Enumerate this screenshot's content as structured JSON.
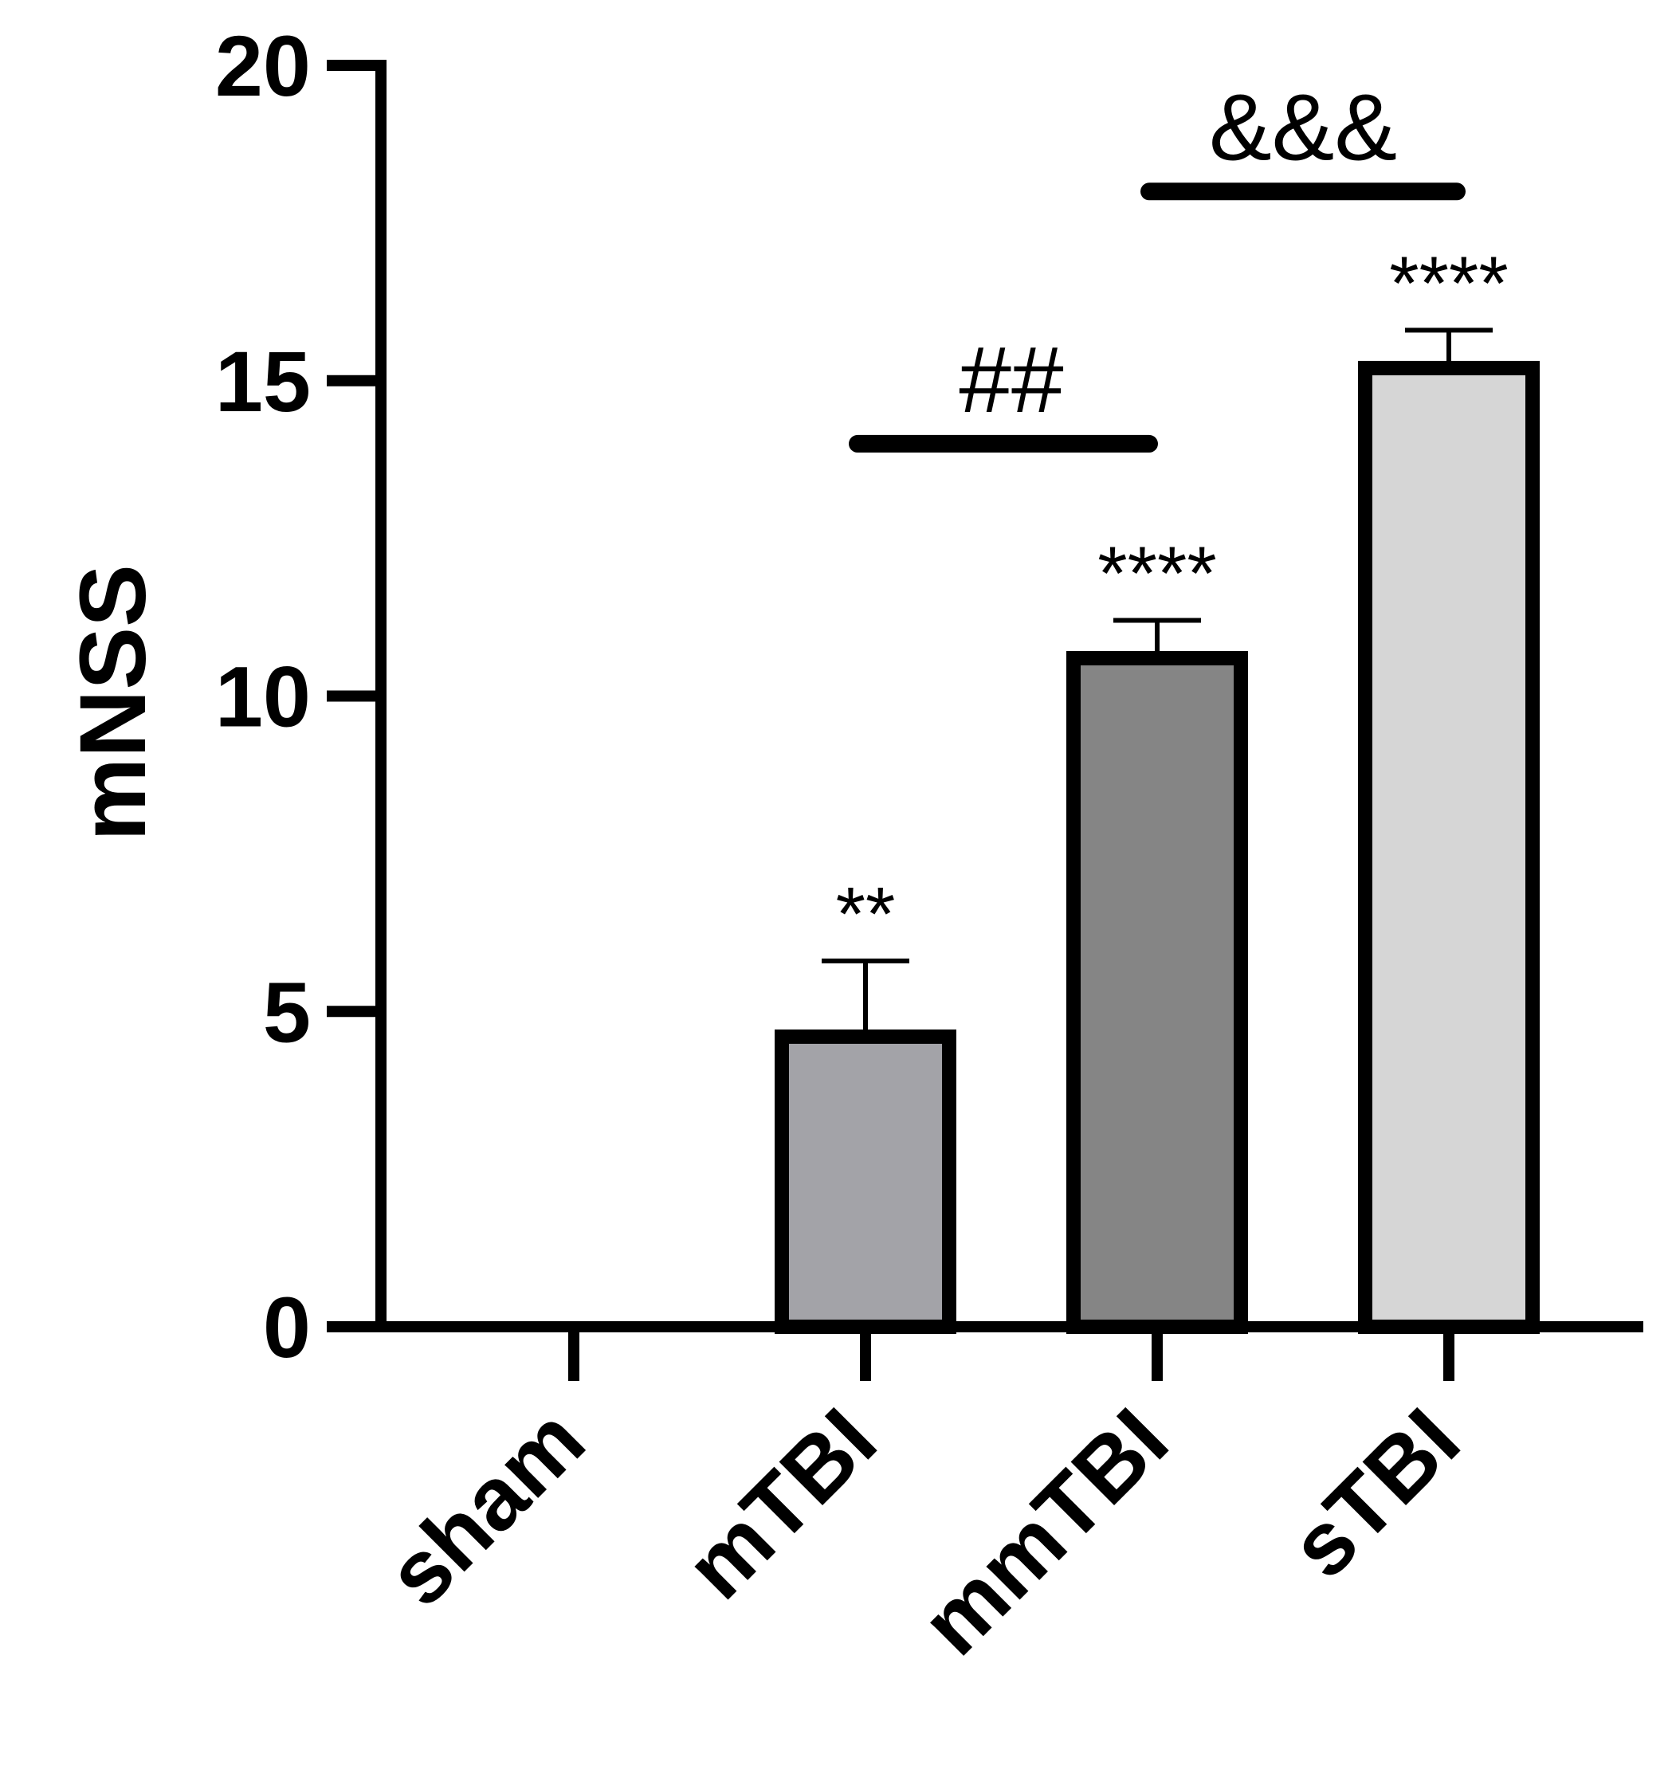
{
  "chart_data": {
    "type": "bar",
    "title": "",
    "xlabel": "",
    "ylabel": "mNSS",
    "ylim": [
      0,
      20
    ],
    "yticks": [
      "0",
      "5",
      "10",
      "15",
      "20"
    ],
    "categories": [
      "sham",
      "mTBI",
      "mmTBI",
      "sTBI"
    ],
    "values": [
      0,
      4.6,
      10.6,
      15.2
    ],
    "error": [
      0,
      1.2,
      0.6,
      0.6
    ],
    "bar_colors": [
      "#ffffff",
      "#a3a3a8",
      "#858585",
      "#d6d6d6"
    ],
    "significance_labels": [
      "",
      "**",
      "****",
      "****"
    ],
    "comparisons": [
      {
        "from": "mTBI",
        "to": "mmTBI",
        "label": "##",
        "y": 14.0
      },
      {
        "from": "mmTBI",
        "to": "sTBI",
        "label": "&&&",
        "y": 18.0
      }
    ],
    "grid": false,
    "legend": "none"
  }
}
